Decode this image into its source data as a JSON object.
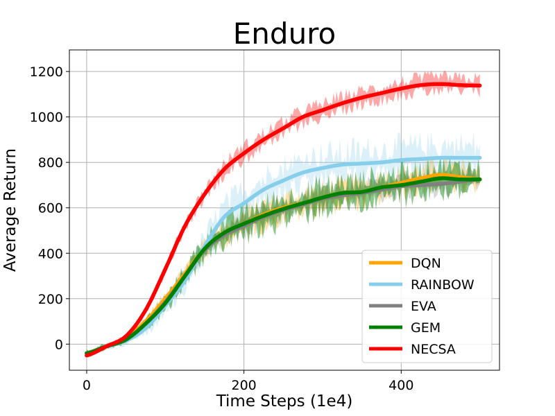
{
  "chart_data": {
    "type": "line",
    "title": "Enduro",
    "xlabel": "Time Steps (1e4)",
    "ylabel": "Average Return",
    "xlim": [
      -22,
      525
    ],
    "ylim": [
      -115,
      1295
    ],
    "xticks": [
      0,
      200,
      400
    ],
    "yticks": [
      0,
      200,
      400,
      600,
      800,
      1000,
      1200
    ],
    "grid": true,
    "legend_position": "lower-right",
    "x": [
      0,
      25,
      50,
      75,
      100,
      125,
      150,
      175,
      200,
      225,
      250,
      275,
      300,
      325,
      350,
      375,
      400,
      425,
      450,
      475,
      500
    ],
    "series": [
      {
        "name": "DQN",
        "color": "#ffa500",
        "values": [
          -40,
          -10,
          25,
          100,
          200,
          310,
          420,
          490,
          530,
          570,
          600,
          620,
          640,
          660,
          670,
          690,
          710,
          730,
          745,
          735,
          725
        ]
      },
      {
        "name": "RAINBOW",
        "color": "#87ceeb",
        "values": [
          -40,
          -10,
          15,
          70,
          170,
          280,
          430,
          560,
          620,
          680,
          720,
          755,
          775,
          790,
          795,
          800,
          810,
          815,
          820,
          820,
          820
        ]
      },
      {
        "name": "EVA",
        "color": "#808080",
        "values": [
          -40,
          -10,
          20,
          90,
          185,
          300,
          415,
          480,
          520,
          560,
          590,
          615,
          640,
          655,
          665,
          680,
          695,
          700,
          705,
          715,
          725
        ]
      },
      {
        "name": "GEM",
        "color": "#008000",
        "values": [
          -40,
          -10,
          20,
          90,
          180,
          300,
          420,
          490,
          530,
          565,
          595,
          620,
          645,
          665,
          670,
          690,
          700,
          715,
          730,
          725,
          725
        ]
      },
      {
        "name": "NECSA",
        "color": "#ff0000",
        "values": [
          -50,
          -10,
          35,
          150,
          330,
          520,
          660,
          770,
          840,
          900,
          950,
          1000,
          1030,
          1060,
          1085,
          1105,
          1125,
          1140,
          1145,
          1140,
          1138
        ]
      }
    ]
  }
}
